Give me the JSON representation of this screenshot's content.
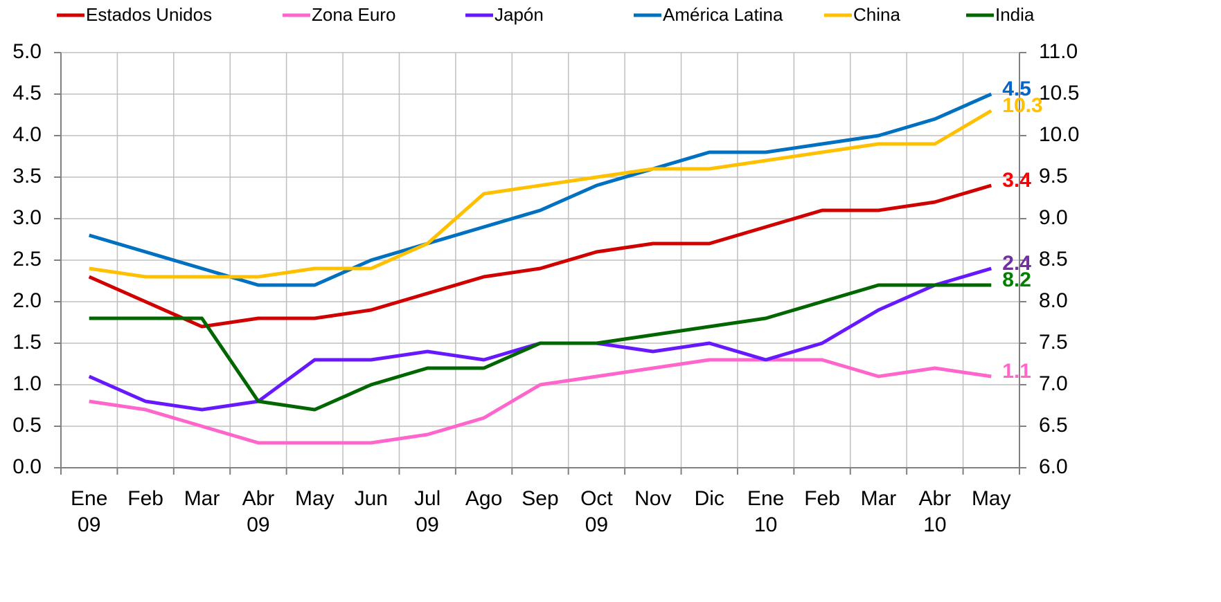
{
  "chart_data": {
    "type": "line",
    "categories": [
      "Ene 09",
      "Feb",
      "Mar",
      "Abr 09",
      "May",
      "Jun",
      "Jul 09",
      "Ago",
      "Sep",
      "Oct 09",
      "Nov",
      "Dic",
      "Ene 10",
      "Feb",
      "Mar",
      "Abr 10",
      "May"
    ],
    "series": [
      {
        "name": "Estados Unidos",
        "color": "#d00000",
        "label_color": "#ff0000",
        "values": [
          2.3,
          2.0,
          1.7,
          1.8,
          1.8,
          1.9,
          2.1,
          2.3,
          2.4,
          2.6,
          2.7,
          2.7,
          2.9,
          3.1,
          3.1,
          3.2,
          3.4
        ]
      },
      {
        "name": "Zona Euro",
        "color": "#ff66cc",
        "label_color": "#ff66cc",
        "values": [
          0.8,
          0.7,
          0.5,
          0.3,
          0.3,
          0.3,
          0.4,
          0.6,
          1.0,
          1.1,
          1.2,
          1.3,
          1.3,
          1.3,
          1.1,
          1.2,
          1.1
        ]
      },
      {
        "name": "Japón",
        "color": "#6619ff",
        "label_color": "#7030a0",
        "values": [
          1.1,
          0.8,
          0.7,
          0.8,
          1.3,
          1.3,
          1.4,
          1.3,
          1.5,
          1.5,
          1.4,
          1.5,
          1.3,
          1.5,
          1.9,
          2.2,
          2.4
        ]
      },
      {
        "name": "América Latina",
        "color": "#0070c0",
        "label_color": "#0066cc",
        "values": [
          2.8,
          2.6,
          2.4,
          2.2,
          2.2,
          2.5,
          2.7,
          2.9,
          3.1,
          3.4,
          3.6,
          3.8,
          3.8,
          3.9,
          4.0,
          4.2,
          4.5
        ]
      },
      {
        "name": "China",
        "color": "#ffc000",
        "label_color": "#ffc000",
        "axis": "y2",
        "values": [
          8.4,
          8.3,
          8.3,
          8.3,
          8.4,
          8.4,
          8.7,
          9.3,
          9.4,
          9.5,
          9.6,
          9.6,
          9.7,
          9.8,
          9.9,
          9.9,
          10.3
        ]
      },
      {
        "name": "India",
        "color": "#006600",
        "label_color": "#008000",
        "axis": "y2",
        "values": [
          7.8,
          7.8,
          7.8,
          6.8,
          6.7,
          7.0,
          7.2,
          7.2,
          7.5,
          7.5,
          7.6,
          7.7,
          7.8,
          8.0,
          8.2,
          8.2,
          8.2
        ]
      }
    ],
    "ylim": [
      0,
      5
    ],
    "yticks": [
      {
        "value": 0,
        "label": "0.0"
      },
      0.5,
      {
        "value": 1,
        "label": "1.0"
      },
      1.5,
      {
        "value": 2,
        "label": "2.0"
      },
      2.5,
      {
        "value": 3,
        "label": "3.0"
      },
      3.5,
      {
        "value": 4,
        "label": "4.0"
      },
      4.5,
      {
        "value": 5,
        "label": "5.0"
      }
    ],
    "y2lim": [
      6,
      11
    ],
    "y2ticks": [
      {
        "value": 6,
        "label": "6.0"
      },
      6.5,
      {
        "value": 7,
        "label": "7.0"
      },
      7.5,
      {
        "value": 8,
        "label": "8.0"
      },
      8.5,
      {
        "value": 9,
        "label": "9.0"
      },
      9.5,
      {
        "value": 10,
        "label": "10.0"
      },
      10.5,
      {
        "value": 11,
        "label": "11.0"
      }
    ],
    "grid": true,
    "legend": "top"
  }
}
